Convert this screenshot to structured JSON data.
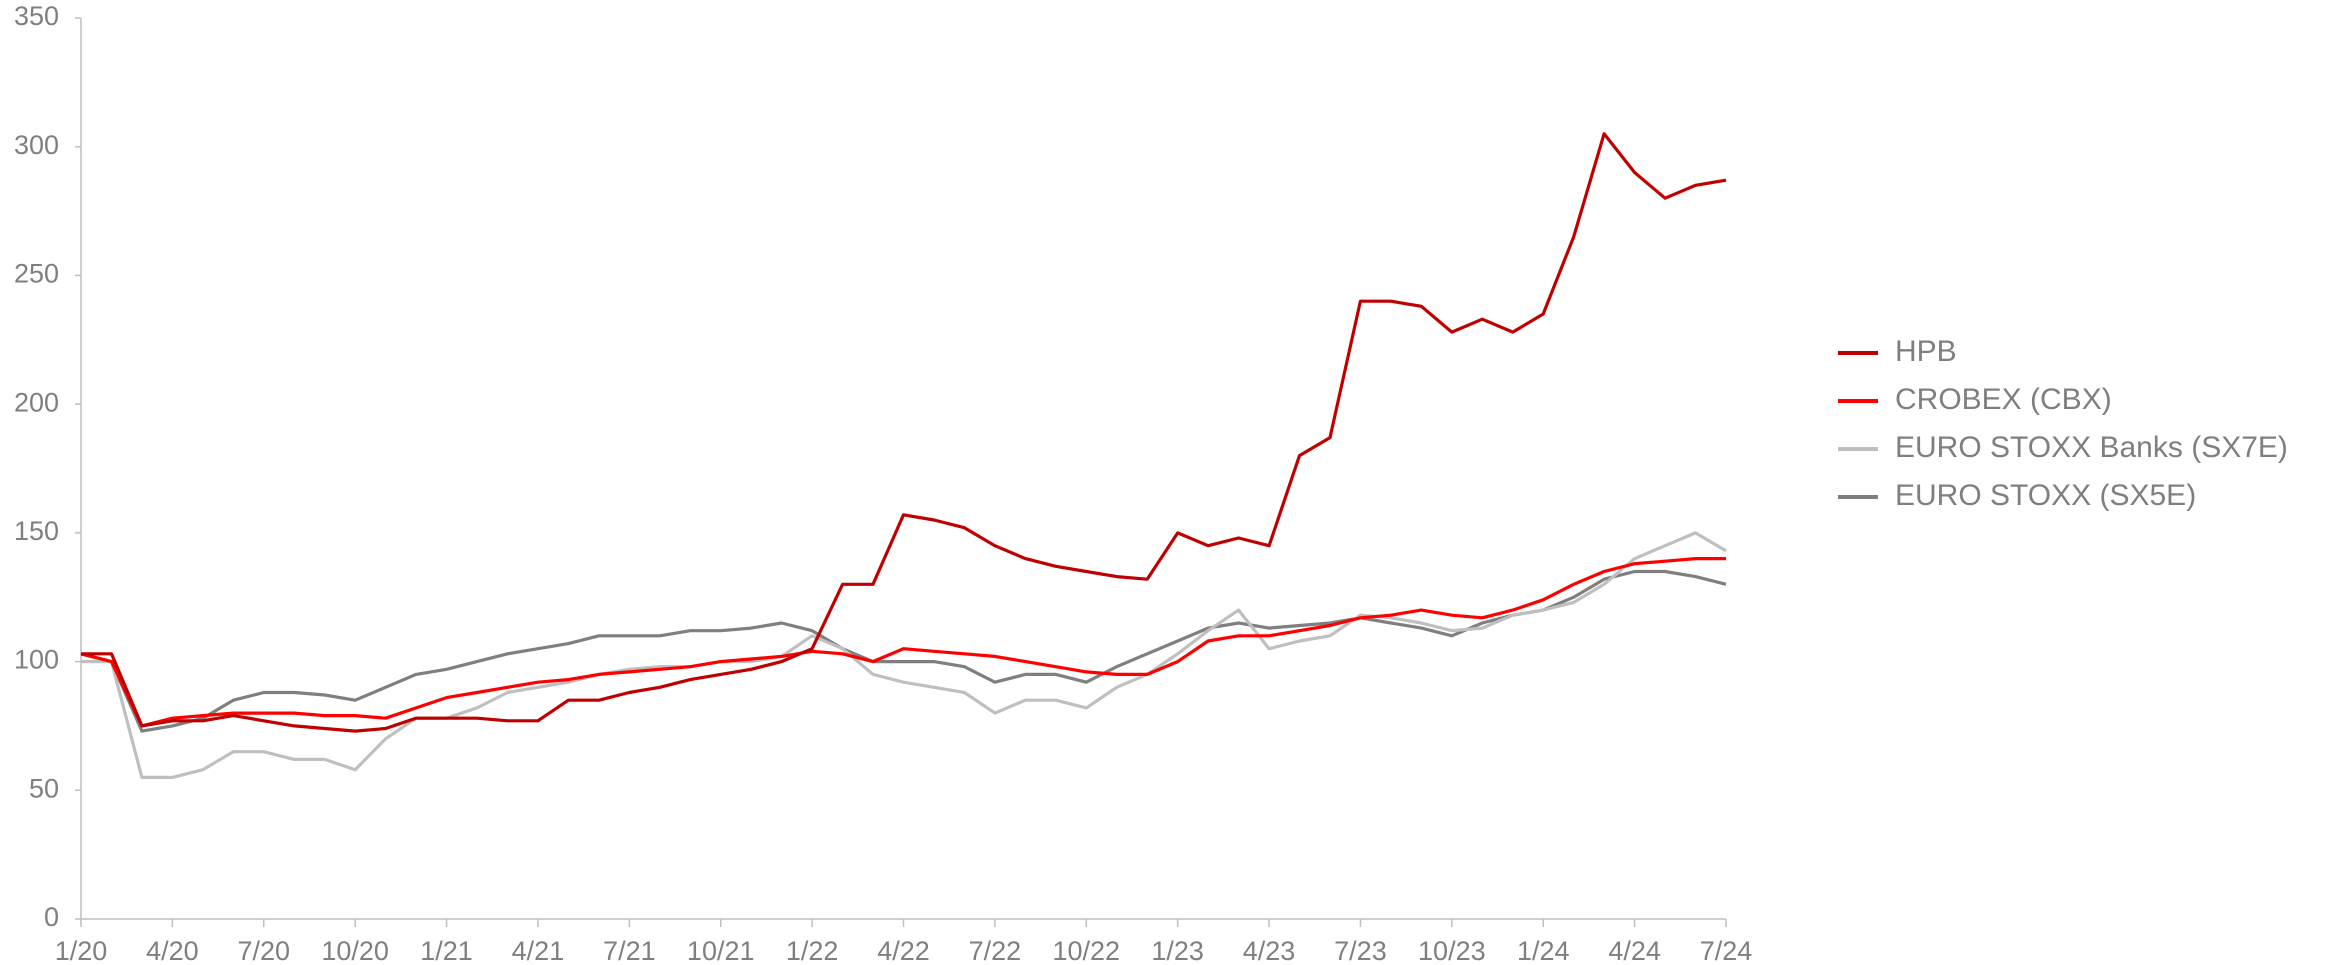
{
  "chart_data": {
    "type": "line",
    "categories": [
      "1/20",
      null,
      null,
      "4/20",
      null,
      null,
      "7/20",
      null,
      null,
      "10/20",
      null,
      null,
      "1/21",
      null,
      null,
      "4/21",
      null,
      null,
      "7/21",
      null,
      null,
      "10/21",
      null,
      null,
      "1/22",
      null,
      null,
      "4/22",
      null,
      null,
      "7/22",
      null,
      null,
      "10/22",
      null,
      null,
      "1/23",
      null,
      null,
      "4/23",
      null,
      null,
      "7/23",
      null,
      null,
      "10/23",
      null,
      null,
      "1/24",
      null,
      null,
      "4/24",
      null,
      null,
      "7/24"
    ],
    "series": [
      {
        "name": "HPB",
        "color": "#c00000",
        "values": [
          103,
          103,
          75,
          77,
          77,
          79,
          77,
          75,
          74,
          73,
          74,
          78,
          78,
          78,
          77,
          77,
          85,
          85,
          88,
          90,
          93,
          95,
          97,
          100,
          105,
          130,
          130,
          157,
          155,
          152,
          145,
          140,
          137,
          135,
          133,
          132,
          150,
          145,
          148,
          145,
          180,
          187,
          240,
          240,
          238,
          228,
          233,
          228,
          235,
          265,
          305,
          290,
          280,
          285,
          287
        ]
      },
      {
        "name": "CROBEX (CBX)",
        "color": "#ff0000",
        "values": [
          103,
          100,
          75,
          78,
          79,
          80,
          80,
          80,
          79,
          79,
          78,
          82,
          86,
          88,
          90,
          92,
          93,
          95,
          96,
          97,
          98,
          100,
          101,
          102,
          104,
          103,
          100,
          105,
          104,
          103,
          102,
          100,
          98,
          96,
          95,
          95,
          100,
          108,
          110,
          110,
          112,
          114,
          117,
          118,
          120,
          118,
          117,
          120,
          124,
          130,
          135,
          138,
          139,
          140,
          140
        ]
      },
      {
        "name": "EURO STOXX Banks (SX7E)",
        "color": "#bfbfbf",
        "values": [
          100,
          100,
          55,
          55,
          58,
          65,
          65,
          62,
          62,
          58,
          70,
          78,
          78,
          82,
          88,
          90,
          92,
          95,
          97,
          98,
          98,
          100,
          100,
          102,
          110,
          105,
          95,
          92,
          90,
          88,
          80,
          85,
          85,
          82,
          90,
          95,
          103,
          112,
          120,
          105,
          108,
          110,
          118,
          117,
          115,
          112,
          113,
          118,
          120,
          123,
          130,
          140,
          145,
          150,
          143
        ]
      },
      {
        "name": "EURO STOXX (SX5E)",
        "color": "#7f7f7f",
        "values": [
          103,
          100,
          73,
          75,
          78,
          85,
          88,
          88,
          87,
          85,
          90,
          95,
          97,
          100,
          103,
          105,
          107,
          110,
          110,
          110,
          112,
          112,
          113,
          115,
          112,
          105,
          100,
          100,
          100,
          98,
          92,
          95,
          95,
          92,
          98,
          103,
          108,
          113,
          115,
          113,
          114,
          115,
          117,
          115,
          113,
          110,
          115,
          118,
          120,
          125,
          132,
          135,
          135,
          133,
          130
        ]
      }
    ],
    "ylim": [
      0,
      350
    ],
    "yticks": [
      0,
      50,
      100,
      150,
      200,
      250,
      300,
      350
    ],
    "grid": false,
    "legend": "right"
  }
}
